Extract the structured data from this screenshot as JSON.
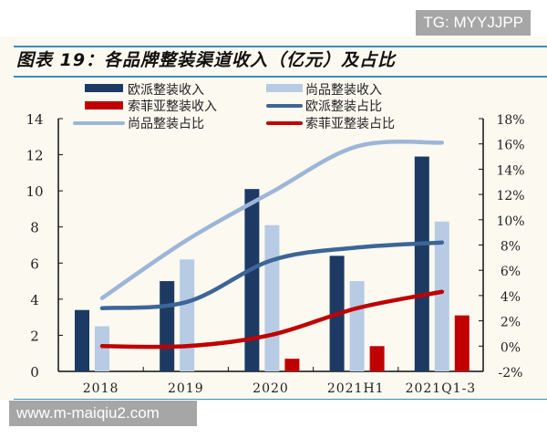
{
  "watermarks": {
    "top": "TG: MYYJJPP",
    "bottom": "www.m-maiqiu2.com"
  },
  "chart_data": {
    "type": "bar+line",
    "title": "图表 19：各品牌整装渠道收入（亿元）及占比",
    "categories": [
      "2018",
      "2019",
      "2020",
      "2021H1",
      "2021Q1-3"
    ],
    "left_axis": {
      "ylim": [
        0,
        14
      ],
      "ticks": [
        "0",
        "2",
        "4",
        "6",
        "8",
        "10",
        "12",
        "14"
      ]
    },
    "right_axis": {
      "ylim": [
        -2,
        18
      ],
      "ticks": [
        "-2%",
        "0%",
        "2%",
        "4%",
        "6%",
        "8%",
        "10%",
        "12%",
        "14%",
        "16%",
        "18%"
      ]
    },
    "bars": [
      {
        "name": "欧派整装收入",
        "color": "#1c3a63",
        "values": [
          3.4,
          5.0,
          10.1,
          6.4,
          11.9
        ]
      },
      {
        "name": "尚品整装收入",
        "color": "#b7cbe4",
        "values": [
          2.5,
          6.2,
          8.1,
          5.0,
          8.3
        ]
      },
      {
        "name": "索菲亚整装收入",
        "color": "#c00000",
        "values": [
          0,
          0,
          0.7,
          1.4,
          3.1
        ]
      }
    ],
    "lines": [
      {
        "name": "尚品整装占比",
        "color": "#9db6d8",
        "values": [
          3.8,
          8.4,
          12.2,
          15.8,
          16.1
        ]
      },
      {
        "name": "欧派整装占比",
        "color": "#3d6597",
        "values": [
          3.0,
          3.5,
          6.8,
          7.8,
          8.2
        ]
      },
      {
        "name": "索菲亚整装占比",
        "color": "#c00000",
        "values": [
          0.0,
          0.0,
          0.9,
          3.0,
          4.3
        ]
      }
    ],
    "legend": "top",
    "grid": false
  }
}
